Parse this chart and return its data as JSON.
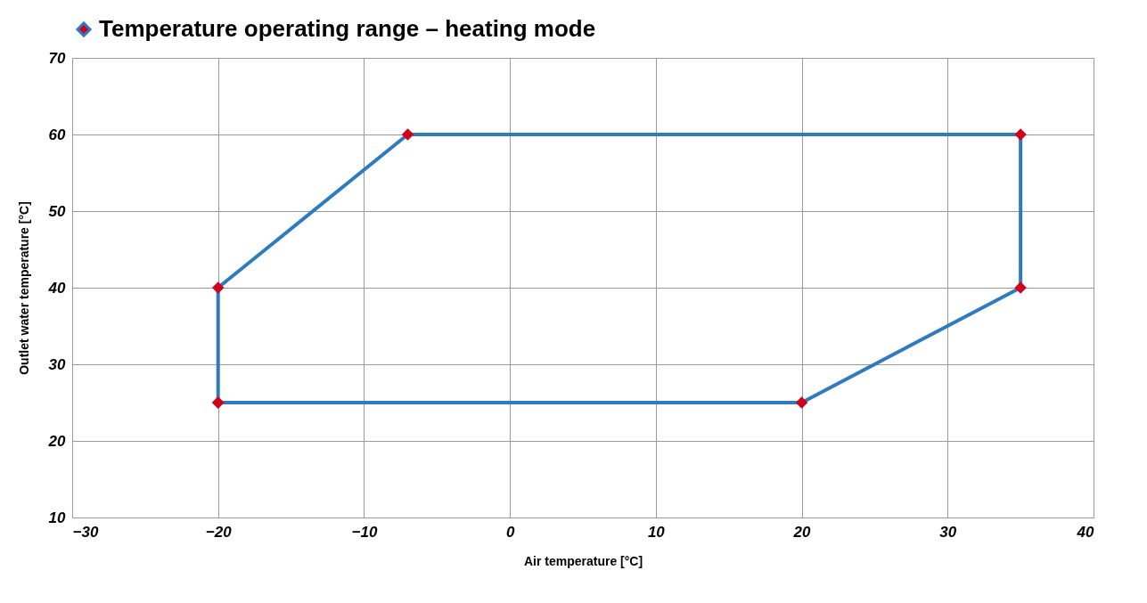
{
  "chart_data": {
    "type": "scatter",
    "xlabel": "Air temperature [°C]",
    "ylabel": "Outlet water temperature [°C]",
    "series": [
      {
        "name": "Temperature operating range – heating mode",
        "color": "#2e7bbf",
        "colors": [
          "#d0021b",
          "#d0021b",
          "#d0021b",
          "#d0021b",
          "#d0021b",
          "#d0021b",
          "#d0021b"
        ],
        "x": [
          -20,
          20,
          35,
          35,
          -7,
          -20,
          -20
        ],
        "values": [
          25,
          25,
          40,
          60,
          60,
          40,
          25
        ]
      }
    ],
    "xlim": [
      -30,
      40
    ],
    "xticks": [
      -30,
      -20,
      -10,
      0,
      10,
      20,
      30,
      40
    ],
    "ylim": [
      10,
      70
    ],
    "yticks": [
      10,
      20,
      30,
      40,
      50,
      60,
      70
    ],
    "grid": true,
    "legend": "top",
    "marker": "diamond",
    "line_style": "solid"
  }
}
